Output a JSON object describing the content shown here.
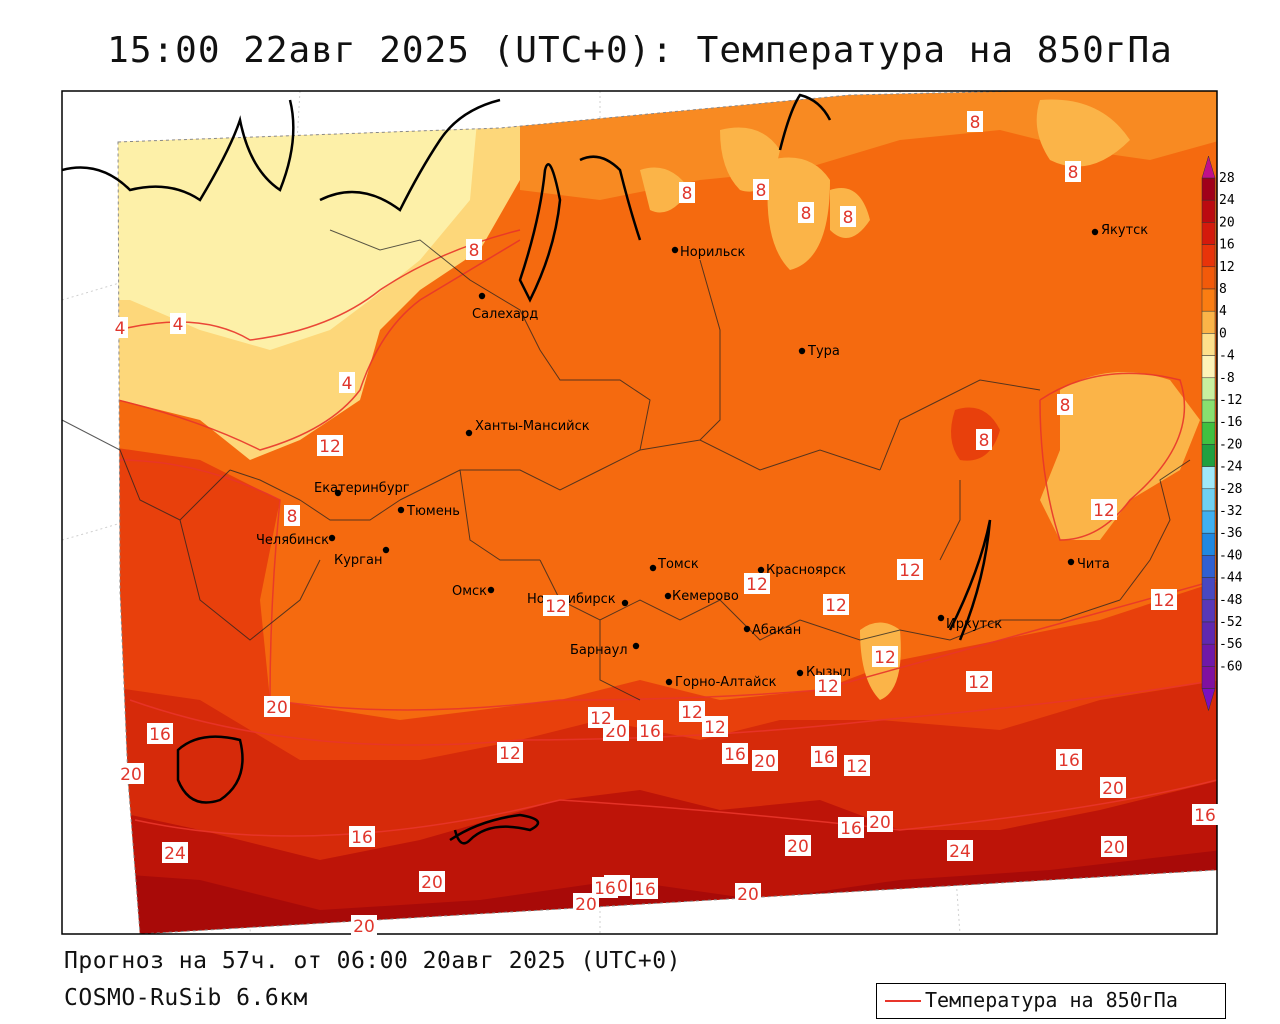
{
  "title": "15:00 22авг 2025 (UTC+0): Температура на 850гПа",
  "footer": {
    "forecast": "Прогноз на 57ч. от 06:00 20авг 2025 (UTC+0)",
    "model": "COSMO-RuSib 6.6км"
  },
  "legend": {
    "label": "Температура на 850гПа",
    "line_color": "#e8352b"
  },
  "colorbar": {
    "ticks": [
      "28",
      "24",
      "20",
      "16",
      "12",
      "8",
      "4",
      "0",
      "-4",
      "-8",
      "-12",
      "-16",
      "-20",
      "-24",
      "-28",
      "-32",
      "-36",
      "-40",
      "-44",
      "-48",
      "-52",
      "-56",
      "-60"
    ],
    "colors": [
      "#a0001a",
      "#bb0a10",
      "#d41a0c",
      "#e8340a",
      "#f25a0a",
      "#fb7d12",
      "#fbb448",
      "#fde08c",
      "#fdf3b8",
      "#c8f0a0",
      "#88e070",
      "#40c040",
      "#20a040",
      "#a0e8f8",
      "#70d0f0",
      "#40b0f0",
      "#2088e0",
      "#3060d0",
      "#4848c0",
      "#5838b8",
      "#6028b0",
      "#7018a8",
      "#8010a0"
    ]
  },
  "cities": [
    {
      "name": "Норильск"
    },
    {
      "name": "Якутск"
    },
    {
      "name": "Салехард"
    },
    {
      "name": "Тура"
    },
    {
      "name": "Ханты-Мансийск"
    },
    {
      "name": "Екатеринбург"
    },
    {
      "name": "Тюмень"
    },
    {
      "name": "Челябинск"
    },
    {
      "name": "Курган"
    },
    {
      "name": "Омск"
    },
    {
      "name": "Томск"
    },
    {
      "name": "Красноярск"
    },
    {
      "name": "Кемерово"
    },
    {
      "name": "Новосибирск"
    },
    {
      "name": "Абакан"
    },
    {
      "name": "Барнаул"
    },
    {
      "name": "Иркутск"
    },
    {
      "name": "Чита"
    },
    {
      "name": "Кызыл"
    },
    {
      "name": "Горно-Алтайск"
    }
  ],
  "contour_labels": [
    "8",
    "8",
    "8",
    "8",
    "8",
    "8",
    "8",
    "4",
    "4",
    "4",
    "8",
    "12",
    "8",
    "12",
    "8",
    "12",
    "12",
    "12",
    "12",
    "12",
    "12",
    "12",
    "12",
    "16",
    "20",
    "12",
    "12",
    "12",
    "16",
    "20",
    "20",
    "16",
    "16",
    "20",
    "16",
    "12",
    "16",
    "20",
    "24",
    "16",
    "20",
    "20",
    "24",
    "20",
    "20",
    "20",
    "16",
    "20",
    "20",
    "20",
    "16",
    "12",
    "16"
  ]
}
